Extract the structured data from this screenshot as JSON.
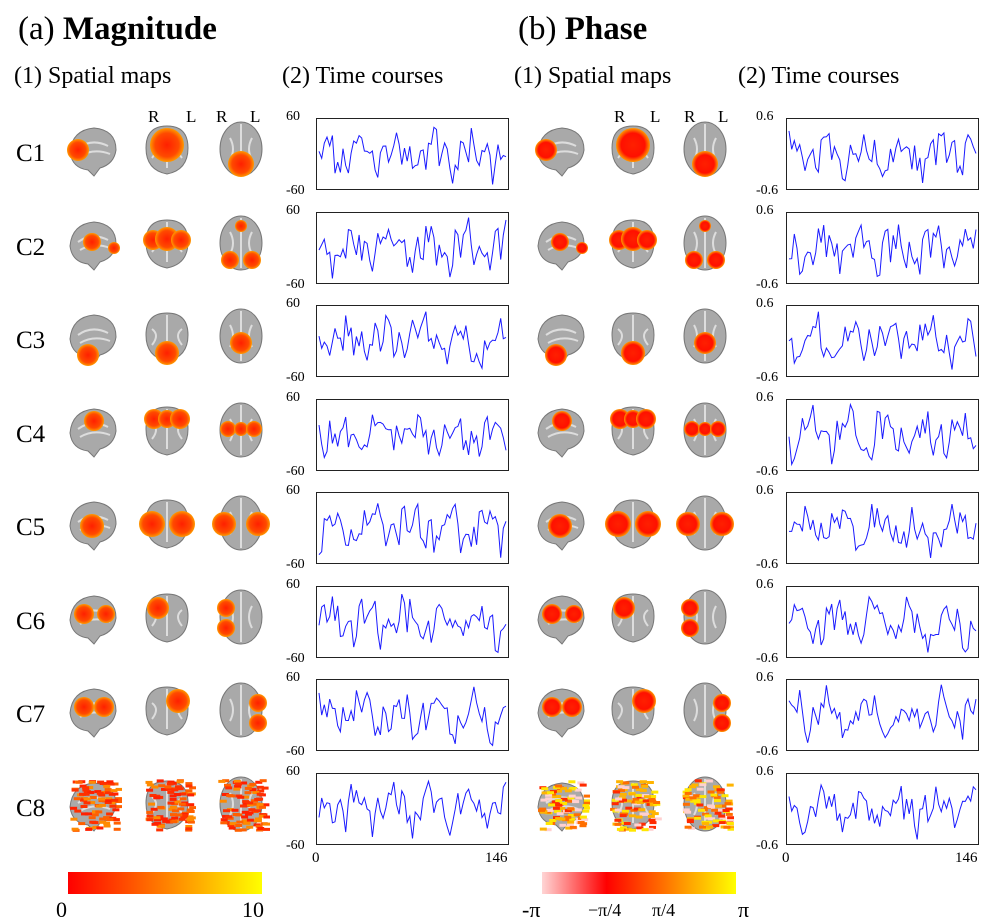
{
  "panels": [
    {
      "key": "magnitude",
      "prefix": "(a)",
      "title": "Magnitude",
      "spatial_label": "(1) Spatial maps",
      "time_label": "(2) Time courses",
      "y_max": "60",
      "y_min": "-60",
      "colorbar": {
        "min": "0",
        "max": "10",
        "colors": [
          "#ff0000",
          "#ff8000",
          "#ffff00"
        ]
      }
    },
    {
      "key": "phase",
      "prefix": "(b)",
      "title": "Phase",
      "spatial_label": "(1) Spatial maps",
      "time_label": "(2) Time courses",
      "y_max": "0.6",
      "y_min": "-0.6",
      "colorbar": {
        "tick1": "-π",
        "tick2": "−π/4",
        "tick3": "π/4",
        "tick4": "π",
        "colors": [
          "#ffd5d5",
          "#ff0000",
          "#ff8000",
          "#ffff00"
        ]
      }
    }
  ],
  "orientation": {
    "right": "R",
    "left": "L"
  },
  "components": [
    "C1",
    "C2",
    "C3",
    "C4",
    "C5",
    "C6",
    "C7",
    "C8"
  ],
  "x_axis": {
    "start": "0",
    "end": "146"
  },
  "colors": {
    "trace": "#1a1aff",
    "brain": "#a9a9a9",
    "blob_core": "#ff2000",
    "blob_edge": "#ff9a00"
  }
}
